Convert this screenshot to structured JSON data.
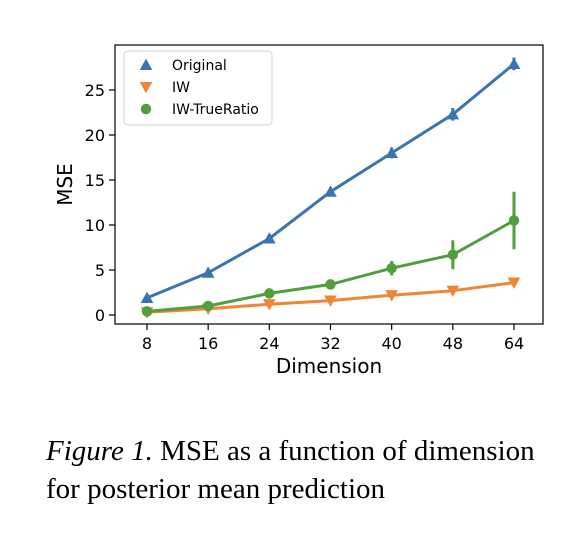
{
  "chart_data": {
    "type": "line",
    "x": [
      8,
      16,
      24,
      32,
      40,
      48,
      64
    ],
    "xlabel": "Dimension",
    "ylabel": "MSE",
    "xticks": [
      "8",
      "16",
      "24",
      "32",
      "40",
      "48",
      "64"
    ],
    "yticks": [
      "0",
      "5",
      "10",
      "15",
      "20",
      "25"
    ],
    "ylim": [
      -1,
      30
    ],
    "grid": false,
    "legend_position": "top-left",
    "series": [
      {
        "name": "Original",
        "marker": "triangle-up",
        "color": "#3b75af",
        "values": [
          1.9,
          4.7,
          8.5,
          13.7,
          18.0,
          22.3,
          27.9
        ],
        "errors": [
          0.2,
          0.3,
          0.3,
          0.5,
          0.6,
          0.7,
          0.7
        ]
      },
      {
        "name": "IW",
        "marker": "triangle-down",
        "color": "#ef8636",
        "values": [
          0.3,
          0.7,
          1.2,
          1.6,
          2.2,
          2.7,
          3.6
        ],
        "errors": [
          0.05,
          0.1,
          0.1,
          0.15,
          0.2,
          0.25,
          0.3
        ]
      },
      {
        "name": "IW-TrueRatio",
        "marker": "circle",
        "color": "#519e3e",
        "values": [
          0.4,
          1.0,
          2.4,
          3.4,
          5.2,
          6.7,
          10.5
        ],
        "errors": [
          0.2,
          0.3,
          0.3,
          0.3,
          0.8,
          1.6,
          3.2
        ]
      }
    ]
  },
  "caption": {
    "lead": "Figure 1.",
    "text": " MSE as a function of dimension for posterior mean prediction"
  }
}
